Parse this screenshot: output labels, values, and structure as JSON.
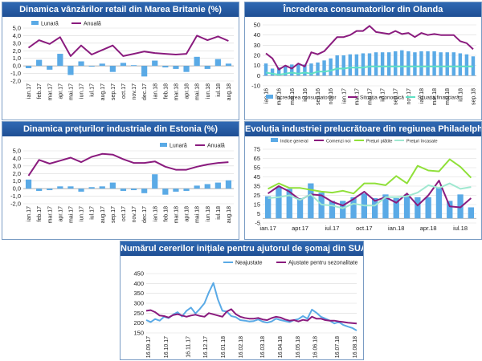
{
  "chart_data": [
    {
      "id": "c1",
      "type": "bar+line",
      "title": "Dinamica vânzărilor retail din Marea Britanie (%)",
      "ylim": [
        -2.0,
        5.0
      ],
      "yticks": [
        "5,0",
        "4,0",
        "3,0",
        "2,0",
        "1,0",
        "0,0",
        "-1,0",
        "-2,0"
      ],
      "ytick_values": [
        5,
        4,
        3,
        2,
        1,
        0,
        -1,
        -2
      ],
      "categories": [
        "ian.17",
        "feb.17",
        "mar.17",
        "apr.17",
        "mai.17",
        "iun.17",
        "iul.17",
        "aug.17",
        "sep.17",
        "oct.17",
        "nov.17",
        "dec.17",
        "ian.18",
        "feb.18",
        "mar.18",
        "apr.18",
        "mai.18",
        "iun.18",
        "iul.18",
        "aug.18"
      ],
      "xtick_labels": [
        "ian.17",
        "feb.17",
        "mar.17",
        "apr.17",
        "mai.17",
        "iun.17",
        "iul.17",
        "aug.17",
        "sep.17",
        "oct.17",
        "nov.17",
        "dec.17",
        "ian.18",
        "feb.18",
        "mar.18",
        "apr.18",
        "mai.18",
        "iun.18",
        "iul.18",
        "aug.18"
      ],
      "legend": [
        "Lunară",
        "Anuală"
      ],
      "series": [
        {
          "name": "Lunară",
          "kind": "bar",
          "color": "#5aaae6",
          "values": [
            -0.3,
            0.8,
            -0.5,
            1.6,
            -1.2,
            0.6,
            -0.1,
            0.3,
            -0.8,
            0.4,
            0.1,
            -1.4,
            0.7,
            -0.2,
            -0.4,
            -0.8,
            1.2,
            -0.4,
            0.9,
            0.3
          ]
        },
        {
          "name": "Anuală",
          "kind": "line",
          "color": "#8a1b7e",
          "values": [
            2.4,
            3.4,
            2.9,
            3.8,
            1.3,
            2.7,
            1.5,
            2.1,
            2.7,
            1.3,
            1.6,
            1.9,
            1.7,
            1.6,
            1.5,
            1.6,
            4.0,
            3.4,
            3.9,
            3.3
          ]
        }
      ]
    },
    {
      "id": "c2",
      "type": "bar+line",
      "title": "Încrederea consumatorilor din Olanda",
      "ylim": [
        -10,
        50
      ],
      "yticks": [
        "50",
        "40",
        "30",
        "20",
        "10",
        "0",
        "-10"
      ],
      "ytick_values": [
        50,
        40,
        30,
        20,
        10,
        0,
        -10
      ],
      "categories": [
        "ian.16",
        "feb.16",
        "mar.16",
        "apr.16",
        "mai.16",
        "iun.16",
        "iul.16",
        "aug.16",
        "sep.16",
        "oct.16",
        "nov.16",
        "dec.16",
        "ian.17",
        "feb.17",
        "mar.17",
        "apr.17",
        "mai.17",
        "iun.17",
        "iul.17",
        "aug.17",
        "sep.17",
        "oct.17",
        "nov.17",
        "dec.17",
        "ian.18",
        "feb.18",
        "mar.18",
        "apr.18",
        "mai.18",
        "iun.18",
        "iul.18",
        "aug.18",
        "sep.18"
      ],
      "xtick_labels": [
        "ian.16",
        "mar.16",
        "mai.16",
        "iul.16",
        "sep.16",
        "nov.16",
        "ian.17",
        "mar.17",
        "mai.17",
        "iul.17",
        "sep.17",
        "nov.17",
        "ian.18",
        "mar.18",
        "mai.18",
        "iul.18",
        "sep.18"
      ],
      "legend": [
        "Încrederea consumatorilor",
        "Situația economică",
        "Situația financiară"
      ],
      "series": [
        {
          "name": "Încrederea consumatorilor",
          "kind": "bar",
          "color": "#5aaae6",
          "values": [
            12,
            7,
            8,
            10,
            11,
            11,
            11,
            12,
            13,
            15,
            17,
            20,
            20,
            21,
            21,
            22,
            22,
            23,
            23,
            23,
            24,
            25,
            24,
            23,
            24,
            24,
            24,
            23,
            23,
            23,
            22,
            21,
            19
          ]
        },
        {
          "name": "Situația economică",
          "kind": "line",
          "color": "#8a1b7e",
          "values": [
            22,
            17,
            6,
            10,
            7,
            12,
            9,
            23,
            21,
            24,
            31,
            38,
            38,
            40,
            44,
            44,
            49,
            43,
            42,
            41,
            44,
            41,
            42,
            38,
            42,
            40,
            41,
            40,
            40,
            40,
            34,
            32,
            26
          ]
        },
        {
          "name": "Situația financiară",
          "kind": "line",
          "color": "#5fe0c4",
          "values": [
            3,
            2,
            1,
            2,
            3,
            2,
            3,
            2,
            4,
            4,
            5,
            7,
            7,
            8,
            8,
            8,
            9,
            9,
            9,
            9,
            9,
            9,
            9,
            9,
            9,
            9,
            9,
            9,
            9,
            9,
            9,
            9,
            9
          ]
        }
      ]
    },
    {
      "id": "c3",
      "type": "bar+line",
      "title": "Dinamica prețurilor industriale din Estonia (%)",
      "ylim": [
        -2.0,
        5.0
      ],
      "yticks": [
        "5,0",
        "4,0",
        "3,0",
        "2,0",
        "1,0",
        "0,0",
        "-1,0",
        "-2,0"
      ],
      "ytick_values": [
        5,
        4,
        3,
        2,
        1,
        0,
        -1,
        -2
      ],
      "categories": [
        "ian.17",
        "feb.17",
        "mar.17",
        "apr.17",
        "mai.17",
        "iun.17",
        "iul.17",
        "aug.17",
        "sep.17",
        "oct.17",
        "nov.17",
        "dec.17",
        "ian.18",
        "feb.18",
        "mar.18",
        "apr.18",
        "mai.18",
        "iun.18",
        "iul.18",
        "aug.18"
      ],
      "xtick_labels": [
        "ian.17",
        "feb.17",
        "mar.17",
        "apr.17",
        "mai.17",
        "iun.17",
        "iul.17",
        "aug.17",
        "sep.17",
        "oct.17",
        "nov.17",
        "dec.17",
        "ian.18",
        "feb.18",
        "mar.18",
        "apr.18",
        "mai.18",
        "iun.18",
        "iul.18",
        "aug.18"
      ],
      "legend": [
        "Lunară",
        "Anuală"
      ],
      "series": [
        {
          "name": "Lunară",
          "kind": "bar",
          "color": "#5aaae6",
          "values": [
            1.2,
            -0.3,
            -0.2,
            0.3,
            0.3,
            -0.4,
            0.2,
            0.3,
            0.8,
            -0.3,
            -0.2,
            -0.6,
            1.9,
            -0.8,
            -0.4,
            -0.3,
            0.4,
            0.6,
            0.8,
            1.1
          ]
        },
        {
          "name": "Anuală",
          "kind": "line",
          "color": "#8a1b7e",
          "values": [
            1.7,
            3.8,
            3.3,
            3.7,
            4.1,
            3.5,
            4.2,
            4.6,
            4.5,
            3.9,
            3.4,
            3.4,
            3.6,
            2.9,
            2.5,
            2.5,
            2.9,
            3.2,
            3.4,
            3.5
          ]
        }
      ]
    },
    {
      "id": "c4",
      "type": "bar+line",
      "title": "Evoluția industriei prelucrătoare din regiunea Philadelphia",
      "ylim": [
        -5,
        75
      ],
      "yticks": [
        "75",
        "65",
        "55",
        "45",
        "35",
        "25",
        "15",
        "5",
        "-5"
      ],
      "ytick_values": [
        75,
        65,
        55,
        45,
        35,
        25,
        15,
        5,
        -5
      ],
      "categories": [
        "ian.17",
        "feb.17",
        "mar.17",
        "apr.17",
        "mai.17",
        "iun.17",
        "iul.17",
        "aug.17",
        "sep.17",
        "oct.17",
        "nov.17",
        "dec.17",
        "ian.18",
        "feb.18",
        "mar.18",
        "apr.18",
        "mai.18",
        "iun.18",
        "iul.18",
        "aug.18"
      ],
      "xtick_labels": [
        "ian.17",
        "apr.17",
        "iul.17",
        "oct.17",
        "ian.18",
        "apr.18",
        "iul.18"
      ],
      "xtick_index": [
        0,
        3,
        6,
        9,
        12,
        15,
        18
      ],
      "legend": [
        "Indice general",
        "Comenzi noi",
        "Prețuri plătite",
        "Prețuri încasate"
      ],
      "series": [
        {
          "name": "Indice general",
          "kind": "bar",
          "color": "#5aaae6",
          "values": [
            24,
            34,
            32,
            22,
            38,
            28,
            19,
            19,
            23,
            27,
            22,
            26,
            22,
            26,
            23,
            23,
            34,
            19,
            26,
            12
          ]
        },
        {
          "name": "Comenzi noi",
          "kind": "line",
          "color": "#8a1b7e",
          "values": [
            27,
            35,
            29,
            20,
            26,
            25,
            18,
            14,
            21,
            29,
            19,
            23,
            17,
            27,
            14,
            25,
            41,
            13,
            12,
            22
          ]
        },
        {
          "name": "Prețuri plătite",
          "kind": "line",
          "color": "#90e03a",
          "values": [
            32,
            38,
            33,
            33,
            31,
            29,
            28,
            30,
            27,
            38,
            38,
            36,
            46,
            38,
            57,
            52,
            51,
            64,
            56,
            44
          ]
        },
        {
          "name": "Prețuri încasate",
          "kind": "line",
          "color": "#9fe8d0",
          "values": [
            22,
            23,
            25,
            20,
            26,
            15,
            14,
            11,
            16,
            14,
            14,
            23,
            23,
            24,
            28,
            36,
            33,
            38,
            32,
            34
          ]
        }
      ]
    },
    {
      "id": "c5",
      "type": "line",
      "title": "Numărul cererilor inițiale pentru ajutorul de șomaj din SUA (mii)",
      "ylim": [
        150,
        450
      ],
      "yticks": [
        "450",
        "400",
        "350",
        "300",
        "250",
        "200",
        "150"
      ],
      "ytick_values": [
        450,
        400,
        350,
        300,
        250,
        200,
        150
      ],
      "xtick_labels": [
        "16.09.17",
        "16.10.17",
        "16.11.17",
        "16.12.17",
        "16.01.18",
        "16.02.18",
        "16.03.18",
        "16.04.18",
        "16.05.18",
        "16.06.18",
        "16.07.18",
        "16.08.18"
      ],
      "legend": [
        "Neajustate",
        "Ajustate pentru sezonalitate"
      ],
      "series": [
        {
          "name": "Neajustate",
          "kind": "line",
          "color": "#5aaae6",
          "values": [
            215,
            205,
            220,
            212,
            232,
            225,
            242,
            255,
            233,
            262,
            278,
            248,
            272,
            300,
            355,
            402,
            320,
            262,
            258,
            235,
            230,
            215,
            212,
            208,
            210,
            218,
            207,
            202,
            208,
            222,
            215,
            210,
            205,
            215,
            220,
            235,
            222,
            268,
            252,
            232,
            222,
            212,
            198,
            205,
            190,
            182,
            175,
            162
          ]
        },
        {
          "name": "Ajustate pentru sezonalitate",
          "kind": "line",
          "color": "#8a1b7e",
          "values": [
            262,
            265,
            255,
            238,
            235,
            228,
            240,
            245,
            238,
            232,
            238,
            242,
            236,
            232,
            250,
            244,
            238,
            232,
            258,
            270,
            245,
            232,
            226,
            222,
            222,
            226,
            218,
            215,
            225,
            232,
            228,
            218,
            212,
            215,
            208,
            216,
            212,
            232,
            222,
            222,
            215,
            212,
            212,
            208,
            205,
            202,
            200,
            198
          ]
        }
      ]
    }
  ]
}
